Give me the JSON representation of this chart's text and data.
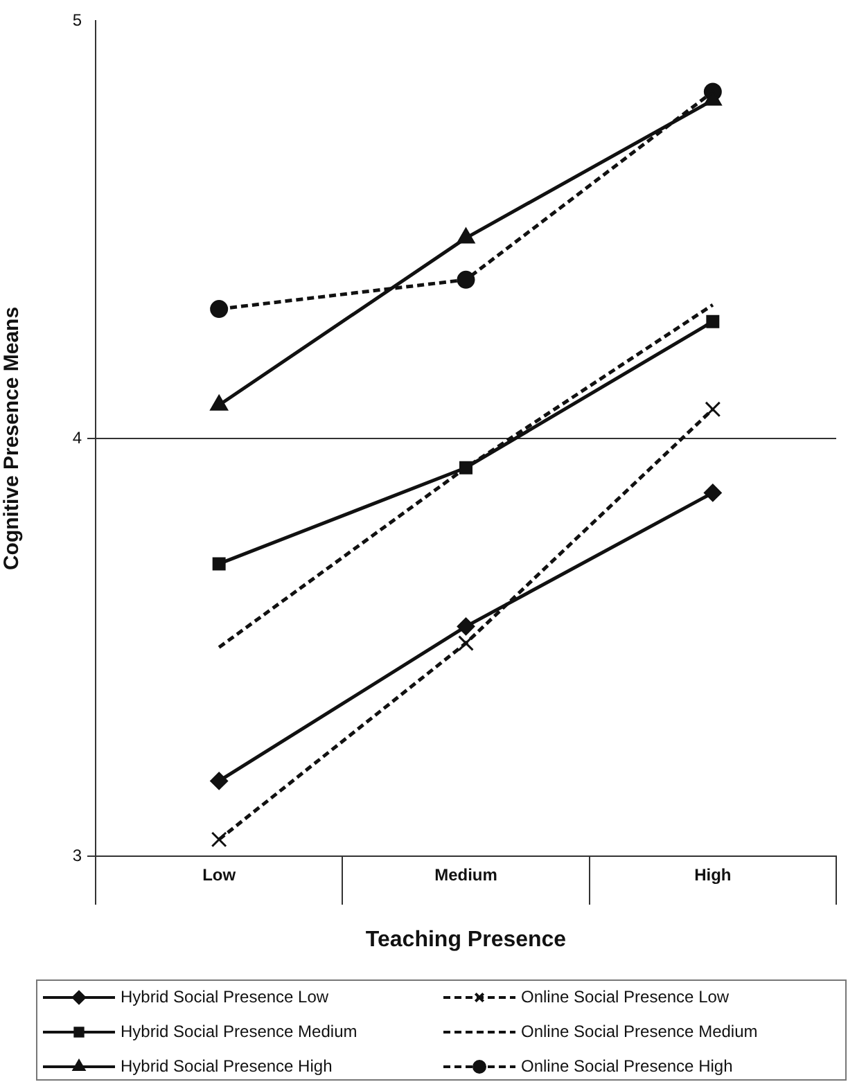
{
  "chart_data": {
    "type": "line",
    "xlabel": "Teaching Presence",
    "ylabel": "Cognitive Presence Means",
    "categories": [
      "Low",
      "Medium",
      "High"
    ],
    "ylim": [
      3,
      5
    ],
    "yticks": [
      3,
      4,
      5
    ],
    "grid": "y",
    "legend": "bottom",
    "series": [
      {
        "name": "Hybrid Social Presence Low",
        "color": "#111111",
        "values": [
          3.18,
          3.55,
          3.87
        ],
        "marker": "diamond",
        "line_style": "solid"
      },
      {
        "name": "Hybrid Social Presence Medium",
        "color": "#111111",
        "values": [
          3.7,
          3.93,
          4.28
        ],
        "marker": "square",
        "line_style": "solid"
      },
      {
        "name": "Hybrid Social Presence High",
        "color": "#111111",
        "values": [
          4.08,
          4.48,
          4.81
        ],
        "marker": "triangle",
        "line_style": "solid"
      },
      {
        "name": "Online Social Presence Low",
        "color": "#111111",
        "values": [
          3.04,
          3.51,
          4.07
        ],
        "marker": "cross",
        "line_style": "dashed"
      },
      {
        "name": "Online Social Presence Medium",
        "color": "#111111",
        "values": [
          3.5,
          3.93,
          4.32
        ],
        "marker": "none",
        "line_style": "dashed"
      },
      {
        "name": "Online Social Presence High",
        "color": "#111111",
        "values": [
          4.31,
          4.38,
          4.83
        ],
        "marker": "circle",
        "line_style": "dashed"
      }
    ]
  }
}
